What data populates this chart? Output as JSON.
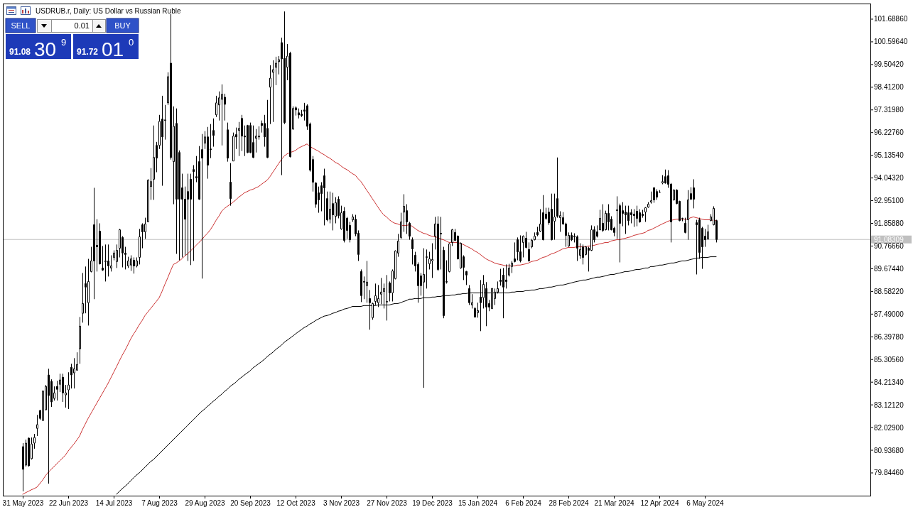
{
  "chart_data": {
    "type": "candlestick",
    "title": "USDRUB.r, Daily: US Dollar vs Russian Ruble",
    "categories": [
      "31 May 2023",
      null,
      null,
      null,
      null,
      null,
      null,
      null,
      null,
      null,
      null,
      null,
      null,
      null,
      null,
      null,
      "22 Jun 2023",
      null,
      null,
      null,
      null,
      null,
      null,
      null,
      null,
      null,
      null,
      null,
      null,
      null,
      null,
      null,
      "14 Jul 2023",
      null,
      null,
      null,
      null,
      null,
      null,
      null,
      null,
      null,
      null,
      null,
      null,
      null,
      null,
      null,
      "7 Aug 2023",
      null,
      null,
      null,
      null,
      null,
      null,
      null,
      null,
      null,
      null,
      null,
      null,
      null,
      null,
      null,
      "29 Aug 2023",
      null,
      null,
      null,
      null,
      null,
      null,
      null,
      null,
      null,
      null,
      null,
      null,
      null,
      null,
      null,
      "20 Sep 2023",
      null,
      null,
      null,
      null,
      null,
      null,
      null,
      null,
      null,
      null,
      null,
      null,
      null,
      null,
      null,
      "12 Oct 2023",
      null,
      null,
      null,
      null,
      null,
      null,
      null,
      null,
      null,
      null,
      null,
      null,
      null,
      null,
      null,
      "3 Nov 2023",
      null,
      null,
      null,
      null,
      null,
      null,
      null,
      null,
      null,
      null,
      null,
      null,
      null,
      null,
      null,
      "27 Nov 2023",
      null,
      null,
      null,
      null,
      null,
      null,
      null,
      null,
      null,
      null,
      null,
      null,
      null,
      null,
      null,
      "19 Dec 2023",
      null,
      null,
      null,
      null,
      null,
      null,
      null,
      null,
      null,
      null,
      null,
      null,
      null,
      null,
      null,
      "15 Jan 2024",
      null,
      null,
      null,
      null,
      null,
      null,
      null,
      null,
      null,
      null,
      null,
      null,
      null,
      null,
      null,
      "6 Feb 2024",
      null,
      null,
      null,
      null,
      null,
      null,
      null,
      null,
      null,
      null,
      null,
      null,
      null,
      null,
      null,
      "28 Feb 2024",
      null,
      null,
      null,
      null,
      null,
      null,
      null,
      null,
      null,
      null,
      null,
      null,
      null,
      null,
      null,
      "21 Mar 2024",
      null,
      null,
      null,
      null,
      null,
      null,
      null,
      null,
      null,
      null,
      null,
      null,
      null,
      null,
      null,
      "12 Apr 2024",
      null,
      null,
      null,
      null,
      null,
      null,
      null,
      null,
      null,
      null,
      null,
      null,
      null,
      null,
      null,
      "6 May 2024",
      null,
      null,
      null,
      null
    ],
    "ohlc": [
      [
        81.11,
        81.28,
        78.96,
        80.02
      ],
      [
        80.22,
        81.45,
        80.15,
        81.28
      ],
      [
        81.52,
        81.55,
        80.15,
        80.19
      ],
      [
        80.53,
        81.55,
        80.49,
        81.24
      ],
      [
        81.28,
        81.72,
        81.01,
        81.55
      ],
      [
        81.99,
        82.64,
        81.62,
        82.17
      ],
      [
        82.85,
        82.88,
        82.4,
        82.47
      ],
      [
        82.37,
        83.84,
        82.34,
        83.77
      ],
      [
        82.88,
        84.08,
        82.88,
        84.01
      ],
      [
        84.56,
        84.86,
        79.33,
        83.57
      ],
      [
        84.25,
        84.35,
        83.02,
        83.26
      ],
      [
        83.43,
        84.01,
        83.33,
        83.7
      ],
      [
        84.01,
        84.28,
        83.33,
        83.87
      ],
      [
        84.11,
        84.62,
        83.74,
        84.32
      ],
      [
        84.45,
        84.62,
        83.26,
        83.7
      ],
      [
        83.6,
        84.08,
        82.99,
        83.7
      ],
      [
        83.84,
        84.69,
        82.92,
        84.08
      ],
      [
        84.93,
        85.1,
        83.91,
        84.56
      ],
      [
        84.66,
        85.37,
        83.91,
        84.86
      ],
      [
        84.79,
        85.65,
        84.79,
        85.07
      ],
      [
        85.82,
        87.35,
        85.1,
        86.91
      ],
      [
        87.53,
        89.47,
        87.08,
        88.0
      ],
      [
        88.96,
        89.78,
        87.53,
        88.79
      ],
      [
        88.04,
        90.15,
        86.94,
        89.06
      ],
      [
        89.54,
        90.73,
        89.5,
        90.05
      ],
      [
        91.79,
        93.57,
        88.21,
        90.05
      ],
      [
        90.8,
        92.06,
        89.54,
        90.73
      ],
      [
        91.48,
        91.86,
        89.88,
        89.91
      ],
      [
        89.71,
        90.77,
        89.57,
        89.61
      ],
      [
        90.05,
        90.84,
        89.06,
        90.02
      ],
      [
        90.05,
        90.84,
        89.3,
        89.81
      ],
      [
        89.71,
        90.32,
        89.54,
        89.81
      ],
      [
        90.22,
        90.56,
        90.08,
        90.43
      ],
      [
        90.02,
        90.84,
        89.71,
        90.56
      ],
      [
        90.66,
        91.59,
        90.22,
        91.55
      ],
      [
        91.18,
        91.24,
        89.74,
        90.43
      ],
      [
        90.43,
        90.73,
        89.64,
        90.36
      ],
      [
        89.81,
        90.25,
        89.71,
        90.05
      ],
      [
        89.85,
        90.32,
        89.57,
        90.15
      ],
      [
        90.08,
        90.22,
        89.44,
        89.81
      ],
      [
        89.81,
        90.22,
        89.74,
        90.05
      ],
      [
        90.22,
        91.59,
        89.88,
        91.21
      ],
      [
        91.79,
        91.86,
        90.66,
        91.45
      ],
      [
        91.45,
        92.13,
        91.11,
        91.83
      ],
      [
        91.93,
        93.98,
        91.93,
        93.94
      ],
      [
        93.63,
        94.52,
        92.99,
        93.87
      ],
      [
        93.98,
        96.57,
        92.99,
        95.03
      ],
      [
        95.61,
        95.78,
        94.32,
        95.0
      ],
      [
        95.61,
        97.08,
        95.44,
        96.77
      ],
      [
        96.88,
        98.0,
        93.67,
        96.02
      ],
      [
        96.81,
        97.56,
        95.89,
        96.84
      ],
      [
        97.66,
        99.13,
        97.56,
        98.92
      ],
      [
        99.57,
        101.93,
        94.93,
        95.03
      ],
      [
        94.83,
        97.49,
        92.78,
        96.53
      ],
      [
        96.67,
        97.39,
        90.39,
        93.02
      ],
      [
        95.27,
        95.37,
        90.08,
        93.02
      ],
      [
        93.57,
        94.25,
        90.22,
        93.02
      ],
      [
        93.02,
        93.63,
        90.32,
        92.06
      ],
      [
        93.39,
        94.25,
        90.05,
        93.02
      ],
      [
        93.98,
        94.25,
        89.85,
        93.02
      ],
      [
        94.45,
        94.66,
        90.05,
        94.35
      ],
      [
        94.11,
        95.1,
        93.84,
        94.04
      ],
      [
        94.83,
        95.58,
        92.99,
        93.02
      ],
      [
        95.41,
        96.16,
        89.2,
        95.0
      ],
      [
        95.72,
        96.3,
        95.44,
        96.02
      ],
      [
        96.02,
        96.5,
        94.01,
        94.66
      ],
      [
        95.44,
        96.64,
        95.0,
        95.41
      ],
      [
        96.33,
        96.91,
        95.55,
        96.09
      ],
      [
        97.08,
        98.0,
        96.98,
        97.66
      ],
      [
        97.56,
        98.21,
        96.81,
        97.9
      ],
      [
        97.83,
        98.55,
        95.61,
        98.07
      ],
      [
        97.93,
        98.1,
        96.81,
        97.59
      ],
      [
        96.36,
        96.71,
        94.83,
        95.0
      ],
      [
        93.84,
        94.76,
        92.71,
        93.05
      ],
      [
        94.86,
        96.23,
        94.86,
        96.06
      ],
      [
        96.13,
        96.47,
        95.44,
        96.02
      ],
      [
        96.33,
        96.74,
        95.1,
        96.43
      ],
      [
        96.91,
        97.08,
        95.34,
        96.06
      ],
      [
        96.06,
        96.57,
        95.1,
        96.02
      ],
      [
        96.57,
        96.6,
        95.24,
        95.27
      ],
      [
        96.57,
        96.71,
        95.24,
        95.27
      ],
      [
        95.75,
        96.57,
        95.0,
        95.03
      ],
      [
        95.95,
        96.4,
        95.27,
        96.06
      ],
      [
        96.02,
        96.53,
        95.89,
        96.06
      ],
      [
        96.67,
        96.81,
        96.23,
        96.57
      ],
      [
        96.67,
        97.08,
        95.55,
        96.02
      ],
      [
        96.43,
        97.8,
        95.0,
        95.03
      ],
      [
        98.41,
        99.47,
        96.64,
        98.85
      ],
      [
        99.13,
        99.71,
        96.74,
        99.26
      ],
      [
        99.37,
        99.88,
        98.51,
        99.57
      ],
      [
        99.64,
        99.91,
        99.03,
        99.74
      ],
      [
        100.56,
        100.8,
        94.18,
        99.78
      ],
      [
        99.81,
        102.06,
        96.64,
        96.71
      ],
      [
        99.37,
        100.49,
        98.75,
        99.91
      ],
      [
        100.05,
        100.12,
        95.03,
        95.07
      ],
      [
        96.4,
        97.49,
        96.36,
        97.39
      ],
      [
        97.42,
        97.49,
        97.05,
        97.32
      ],
      [
        97.18,
        97.39,
        96.91,
        97.08
      ],
      [
        97.12,
        97.32,
        96.98,
        97.05
      ],
      [
        97.32,
        97.66,
        96.81,
        97.25
      ],
      [
        97.52,
        97.59,
        96.36,
        96.53
      ],
      [
        96.64,
        96.71,
        94.35,
        94.42
      ],
      [
        94.93,
        95.1,
        93.39,
        93.84
      ],
      [
        93.8,
        93.84,
        92.61,
        92.78
      ],
      [
        93.33,
        93.63,
        92.37,
        92.99
      ],
      [
        93.67,
        93.84,
        92.44,
        93.29
      ],
      [
        94.15,
        94.49,
        91.76,
        93.57
      ],
      [
        93.05,
        93.39,
        91.96,
        92.03
      ],
      [
        92.06,
        93.39,
        91.86,
        92.54
      ],
      [
        92.81,
        93.33,
        91.52,
        92.27
      ],
      [
        92.2,
        93.12,
        91.86,
        92.85
      ],
      [
        93.02,
        93.16,
        92.1,
        92.23
      ],
      [
        91.59,
        92.71,
        91.55,
        92.37
      ],
      [
        92.44,
        92.64,
        90.94,
        91.04
      ],
      [
        92.1,
        92.17,
        91.11,
        91.52
      ],
      [
        91.76,
        91.93,
        90.94,
        91.07
      ],
      [
        92.03,
        92.3,
        91.93,
        92.17
      ],
      [
        92.06,
        92.27,
        91.24,
        91.35
      ],
      [
        91.38,
        91.52,
        90.05,
        90.36
      ],
      [
        89.54,
        89.64,
        88.07,
        88.38
      ],
      [
        89.06,
        89.3,
        88.21,
        89.03
      ],
      [
        88.86,
        90.05,
        88.04,
        89.03
      ],
      [
        88.24,
        88.65,
        86.74,
        88.04
      ],
      [
        87.32,
        88.04,
        87.22,
        88.0
      ],
      [
        88.1,
        88.96,
        87.93,
        88.38
      ],
      [
        88.04,
        88.89,
        87.83,
        88.24
      ],
      [
        88.45,
        89.23,
        87.97,
        88.55
      ],
      [
        88.58,
        88.96,
        87.76,
        88.72
      ],
      [
        88.07,
        89.37,
        87.18,
        88.1
      ],
      [
        88.99,
        89.06,
        88.1,
        88.51
      ],
      [
        88.51,
        89.64,
        88.1,
        89.57
      ],
      [
        89.2,
        90.56,
        89.16,
        90.53
      ],
      [
        90.43,
        91.35,
        90.25,
        91.01
      ],
      [
        91.18,
        92.37,
        91.11,
        91.93
      ],
      [
        92.4,
        93.26,
        91.45,
        92.68
      ],
      [
        92.47,
        92.78,
        91.35,
        91.93
      ],
      [
        91.86,
        91.93,
        91.07,
        91.24
      ],
      [
        91.07,
        91.18,
        89.88,
        90.63
      ],
      [
        90.32,
        90.49,
        89.54,
        89.81
      ],
      [
        89.88,
        89.98,
        88.04,
        88.86
      ],
      [
        89.33,
        89.47,
        88.38,
        88.86
      ],
      [
        89.03,
        90.66,
        83.94,
        89.4
      ],
      [
        90.22,
        90.6,
        88.72,
        90.25
      ],
      [
        89.91,
        90.49,
        89.64,
        90.15
      ],
      [
        90.05,
        90.9,
        89.23,
        90.12
      ],
      [
        91.24,
        92.17,
        90.6,
        91.83
      ],
      [
        91.83,
        92.2,
        89.57,
        89.64
      ],
      [
        91.38,
        92.17,
        89.64,
        91.35
      ],
      [
        90.56,
        90.73,
        87.29,
        87.42
      ],
      [
        89.06,
        90.08,
        88.96,
        89.03
      ],
      [
        89.54,
        90.9,
        89.5,
        90.87
      ],
      [
        90.94,
        91.59,
        90.77,
        91.55
      ],
      [
        91.42,
        91.59,
        91.01,
        91.04
      ],
      [
        91.24,
        91.28,
        90.12,
        90.15
      ],
      [
        89.71,
        90.94,
        89.67,
        90.9
      ],
      [
        90.25,
        90.32,
        89.13,
        89.74
      ],
      [
        89.54,
        89.57,
        88.89,
        89.37
      ],
      [
        88.72,
        88.89,
        87.93,
        88.04
      ],
      [
        87.93,
        88.45,
        87.76,
        88.04
      ],
      [
        87.76,
        87.83,
        87.32,
        87.35
      ],
      [
        87.56,
        88.04,
        87.32,
        87.66
      ],
      [
        88.31,
        89.13,
        86.67,
        88.04
      ],
      [
        88.28,
        89.37,
        87.76,
        88.92
      ],
      [
        88.72,
        89.03,
        86.91,
        87.83
      ],
      [
        88.0,
        88.17,
        87.63,
        87.83
      ],
      [
        87.76,
        88.75,
        87.73,
        88.72
      ],
      [
        88.24,
        88.72,
        87.93,
        88.55
      ],
      [
        88.55,
        89.06,
        88.48,
        88.72
      ],
      [
        89.13,
        89.67,
        88.86,
        89.06
      ],
      [
        89.37,
        89.71,
        87.29,
        88.79
      ],
      [
        89.13,
        89.88,
        88.72,
        89.06
      ],
      [
        89.37,
        89.91,
        89.3,
        89.71
      ],
      [
        89.78,
        90.05,
        89.47,
        89.95
      ],
      [
        90.15,
        90.94,
        89.98,
        90.02
      ],
      [
        91.07,
        91.18,
        90.08,
        90.49
      ],
      [
        90.49,
        91.28,
        89.98,
        90.05
      ],
      [
        90.94,
        91.28,
        90.22,
        91.24
      ],
      [
        91.14,
        91.45,
        90.66,
        90.7
      ],
      [
        90.6,
        90.94,
        90.02,
        90.05
      ],
      [
        90.73,
        91.11,
        90.66,
        91.04
      ],
      [
        91.07,
        91.42,
        91.04,
        91.24
      ],
      [
        91.42,
        91.69,
        91.24,
        91.31
      ],
      [
        91.48,
        92.54,
        91.45,
        91.83
      ],
      [
        92.37,
        93.22,
        91.04,
        91.07
      ],
      [
        92.3,
        92.61,
        92.03,
        92.1
      ],
      [
        92.4,
        92.61,
        91.79,
        91.89
      ],
      [
        92.54,
        93.29,
        91.04,
        91.07
      ],
      [
        91.96,
        93.29,
        91.07,
        92.17
      ],
      [
        93.05,
        95.03,
        92.13,
        92.2
      ],
      [
        92.13,
        92.44,
        91.45,
        92.23
      ],
      [
        92.13,
        92.4,
        91.79,
        91.83
      ],
      [
        91.83,
        91.89,
        90.73,
        91.28
      ],
      [
        90.77,
        91.42,
        90.73,
        91.28
      ],
      [
        91.28,
        91.42,
        91.01,
        91.07
      ],
      [
        91.24,
        91.38,
        90.94,
        91.21
      ],
      [
        91.21,
        91.28,
        90.05,
        90.66
      ],
      [
        90.32,
        90.9,
        90.15,
        90.6
      ],
      [
        90.73,
        90.84,
        89.88,
        90.22
      ],
      [
        90.36,
        90.77,
        90.32,
        90.73
      ],
      [
        90.66,
        90.73,
        89.54,
        90.56
      ],
      [
        90.56,
        91.76,
        90.53,
        91.55
      ],
      [
        91.55,
        91.72,
        90.94,
        91.07
      ],
      [
        91.45,
        91.76,
        91.18,
        91.24
      ],
      [
        91.55,
        92.51,
        91.52,
        92.1
      ],
      [
        91.86,
        92.78,
        91.45,
        91.52
      ],
      [
        91.55,
        92.47,
        91.52,
        92.34
      ],
      [
        92.34,
        92.78,
        91.52,
        91.93
      ],
      [
        92.06,
        92.2,
        91.52,
        91.55
      ],
      [
        91.62,
        91.69,
        91.24,
        91.42
      ],
      [
        92.47,
        93.16,
        91.11,
        92.51
      ],
      [
        92.71,
        92.81,
        89.98,
        91.86
      ],
      [
        92.47,
        92.88,
        91.72,
        92.34
      ],
      [
        92.4,
        92.71,
        91.35,
        92.27
      ],
      [
        92.37,
        92.71,
        91.76,
        91.99
      ],
      [
        92.37,
        92.54,
        91.86,
        92.27
      ],
      [
        92.3,
        92.54,
        91.69,
        92.23
      ],
      [
        92.44,
        92.71,
        91.72,
        92.1
      ],
      [
        92.37,
        92.54,
        91.89,
        91.93
      ],
      [
        92.3,
        92.51,
        92.13,
        92.23
      ],
      [
        92.4,
        92.64,
        91.93,
        92.61
      ],
      [
        92.64,
        92.88,
        92.61,
        92.78
      ],
      [
        92.88,
        93.39,
        92.81,
        92.95
      ],
      [
        93.57,
        93.6,
        92.85,
        92.99
      ],
      [
        93.39,
        93.5,
        92.99,
        93.12
      ],
      [
        93.36,
        93.46,
        93.33,
        93.36
      ],
      [
        93.8,
        94.18,
        93.74,
        93.87
      ],
      [
        94.11,
        94.45,
        93.77,
        93.8
      ],
      [
        94.15,
        94.42,
        93.57,
        93.74
      ],
      [
        93.74,
        93.8,
        90.94,
        91.93
      ],
      [
        92.99,
        93.5,
        92.95,
        93.46
      ],
      [
        93.46,
        93.5,
        92.78,
        92.81
      ],
      [
        92.92,
        92.95,
        91.96,
        91.99
      ],
      [
        92.1,
        92.13,
        91.96,
        92.1
      ],
      [
        91.86,
        92.13,
        91.38,
        91.42
      ],
      [
        92.03,
        93.46,
        91.07,
        92.99
      ],
      [
        93.29,
        93.6,
        92.99,
        93.02
      ],
      [
        93.57,
        93.98,
        92.58,
        93.02
      ],
      [
        91.89,
        92.03,
        89.4,
        91.79
      ],
      [
        92.03,
        92.13,
        90.15,
        90.46
      ],
      [
        91.62,
        91.69,
        89.67,
        90.73
      ],
      [
        91.24,
        91.59,
        90.73,
        91.07
      ],
      [
        91.11,
        91.79,
        91.07,
        91.45
      ],
      [
        91.99,
        92.3,
        91.96,
        92.17
      ],
      [
        91.79,
        92.68,
        91.76,
        92.58
      ],
      [
        91.99,
        92.03,
        90.94,
        91.08
      ]
    ],
    "series": [
      {
        "type": "line",
        "color": "#cc3333",
        "values": [
          78.82,
          78.89,
          78.96,
          79.03,
          79.09,
          79.16,
          79.33,
          79.5,
          79.71,
          79.88,
          80.02,
          80.15,
          80.29,
          80.43,
          80.56,
          80.7,
          80.9,
          81.07,
          81.24,
          81.42,
          81.62,
          81.93,
          82.2,
          82.47,
          82.71,
          82.95,
          83.19,
          83.43,
          83.67,
          83.91,
          84.15,
          84.42,
          84.69,
          84.96,
          85.24,
          85.51,
          85.75,
          86.02,
          86.3,
          86.53,
          86.74,
          86.98,
          87.18,
          87.42,
          87.59,
          87.76,
          87.93,
          88.1,
          88.28,
          88.58,
          88.92,
          89.23,
          89.57,
          89.88,
          89.95,
          90.05,
          90.15,
          90.29,
          90.39,
          90.53,
          90.66,
          90.8,
          90.94,
          91.07,
          91.24,
          91.38,
          91.55,
          91.76,
          92.0,
          92.2,
          92.44,
          92.58,
          92.68,
          92.78,
          92.88,
          92.99,
          93.12,
          93.22,
          93.33,
          93.39,
          93.46,
          93.5,
          93.57,
          93.63,
          93.74,
          93.84,
          93.94,
          94.11,
          94.32,
          94.52,
          94.73,
          94.93,
          95.1,
          95.2,
          95.27,
          95.31,
          95.37,
          95.48,
          95.55,
          95.61,
          95.68,
          95.58,
          95.48,
          95.41,
          95.34,
          95.24,
          95.17,
          95.07,
          95.0,
          94.9,
          94.79,
          94.73,
          94.62,
          94.52,
          94.45,
          94.35,
          94.25,
          94.18,
          94.01,
          93.87,
          93.67,
          93.46,
          93.26,
          93.05,
          92.85,
          92.64,
          92.44,
          92.27,
          92.17,
          92.03,
          91.93,
          91.86,
          91.83,
          91.76,
          91.76,
          91.76,
          91.79,
          91.72,
          91.62,
          91.52,
          91.45,
          91.38,
          91.35,
          91.28,
          91.24,
          91.21,
          91.18,
          91.11,
          91.07,
          91.01,
          90.94,
          90.94,
          90.94,
          90.94,
          90.9,
          90.84,
          90.77,
          90.7,
          90.63,
          90.53,
          90.46,
          90.36,
          90.25,
          90.15,
          90.08,
          90.02,
          89.95,
          89.91,
          89.88,
          89.85,
          89.81,
          89.81,
          89.81,
          89.81,
          89.85,
          89.85,
          89.88,
          89.91,
          89.95,
          90.02,
          90.05,
          90.08,
          90.15,
          90.22,
          90.25,
          90.32,
          90.39,
          90.43,
          90.49,
          90.56,
          90.63,
          90.66,
          90.7,
          90.7,
          90.7,
          90.73,
          90.73,
          90.73,
          90.73,
          90.77,
          90.77,
          90.8,
          90.84,
          90.87,
          90.9,
          90.94,
          90.94,
          91.01,
          91.04,
          91.07,
          91.07,
          91.11,
          91.14,
          91.18,
          91.21,
          91.28,
          91.31,
          91.35,
          91.38,
          91.42,
          91.52,
          91.55,
          91.62,
          91.69,
          91.76,
          91.83,
          91.89,
          91.96,
          92.0,
          92.03,
          92.06,
          92.06,
          92.06,
          92.06,
          92.06,
          92.13,
          92.17,
          92.13,
          92.1,
          92.06,
          92.03,
          92.03,
          92.03,
          92.0,
          92.0
        ]
      },
      {
        "type": "line",
        "color": "#000000",
        "values": [
          null,
          null,
          null,
          null,
          null,
          null,
          null,
          null,
          null,
          null,
          null,
          null,
          null,
          null,
          null,
          null,
          null,
          null,
          null,
          null,
          null,
          null,
          null,
          null,
          null,
          null,
          null,
          null,
          null,
          null,
          null,
          null,
          null,
          78.82,
          78.96,
          79.09,
          79.2,
          79.33,
          79.47,
          79.61,
          79.74,
          79.85,
          79.98,
          80.12,
          80.25,
          80.39,
          80.49,
          80.63,
          80.77,
          80.9,
          81.04,
          81.18,
          81.31,
          81.45,
          81.59,
          81.72,
          81.86,
          81.99,
          82.13,
          82.27,
          82.4,
          82.54,
          82.68,
          82.81,
          82.92,
          83.05,
          83.16,
          83.29,
          83.39,
          83.53,
          83.63,
          83.77,
          83.87,
          84.01,
          84.11,
          84.21,
          84.35,
          84.45,
          84.56,
          84.66,
          84.76,
          84.9,
          85.0,
          85.1,
          85.2,
          85.31,
          85.44,
          85.55,
          85.65,
          85.78,
          85.89,
          85.99,
          86.13,
          86.23,
          86.33,
          86.43,
          86.54,
          86.64,
          86.74,
          86.84,
          86.91,
          87.01,
          87.08,
          87.18,
          87.25,
          87.32,
          87.39,
          87.42,
          87.46,
          87.53,
          87.56,
          87.63,
          87.66,
          87.73,
          87.76,
          87.8,
          87.86,
          87.86,
          87.86,
          87.86,
          87.9,
          87.9,
          87.9,
          87.9,
          87.9,
          87.93,
          87.93,
          87.93,
          87.93,
          87.93,
          87.97,
          88.0,
          88.0,
          88.04,
          88.1,
          88.14,
          88.21,
          88.21,
          88.24,
          88.24,
          88.24,
          88.28,
          88.28,
          88.28,
          88.31,
          88.31,
          88.34,
          88.34,
          88.38,
          88.38,
          88.38,
          88.41,
          88.41,
          88.45,
          88.45,
          88.48,
          88.48,
          88.51,
          88.51,
          88.51,
          88.51,
          88.51,
          88.51,
          88.51,
          88.51,
          88.51,
          88.51,
          88.51,
          88.51,
          88.51,
          88.51,
          88.51,
          88.55,
          88.55,
          88.58,
          88.58,
          88.58,
          88.62,
          88.62,
          88.65,
          88.65,
          88.68,
          88.72,
          88.72,
          88.75,
          88.79,
          88.79,
          88.82,
          88.86,
          88.89,
          88.89,
          88.92,
          88.96,
          88.99,
          89.03,
          89.06,
          89.09,
          89.13,
          89.13,
          89.16,
          89.2,
          89.23,
          89.27,
          89.27,
          89.3,
          89.33,
          89.37,
          89.4,
          89.4,
          89.44,
          89.47,
          89.5,
          89.54,
          89.54,
          89.57,
          89.61,
          89.64,
          89.64,
          89.67,
          89.71,
          89.71,
          89.78,
          89.78,
          89.81,
          89.85,
          89.85,
          89.88,
          89.91,
          89.95,
          89.95,
          89.98,
          90.02,
          90.05,
          90.05,
          90.08,
          90.12,
          90.15,
          90.19,
          90.19,
          90.22,
          90.22,
          90.22,
          90.25,
          90.25,
          90.25
        ]
      }
    ],
    "ylim": [
      78.75,
      102.44
    ],
    "yticks": [
      {
        "value": 101.6886,
        "label": "101.68860"
      },
      {
        "value": 100.5964,
        "label": "100.59640"
      },
      {
        "value": 99.5042,
        "label": "99.50420"
      },
      {
        "value": 98.412,
        "label": "98.41200"
      },
      {
        "value": 97.3198,
        "label": "97.31980"
      },
      {
        "value": 96.2276,
        "label": "96.22760"
      },
      {
        "value": 95.1354,
        "label": "95.13540"
      },
      {
        "value": 94.0432,
        "label": "94.04320"
      },
      {
        "value": 92.951,
        "label": "92.95100"
      },
      {
        "value": 91.8588,
        "label": "91.85880"
      },
      {
        "value": 90.7666,
        "label": "90.76660"
      },
      {
        "value": 89.6744,
        "label": "89.67440"
      },
      {
        "value": 88.5822,
        "label": "88.58220"
      },
      {
        "value": 87.49,
        "label": "87.49000"
      },
      {
        "value": 86.3978,
        "label": "86.39780"
      },
      {
        "value": 85.3056,
        "label": "85.30560"
      },
      {
        "value": 84.2134,
        "label": "84.21340"
      },
      {
        "value": 83.1212,
        "label": "83.12120"
      },
      {
        "value": 82.029,
        "label": "82.02900"
      },
      {
        "value": 80.9368,
        "label": "80.93680"
      },
      {
        "value": 79.8446,
        "label": "79.84460"
      }
    ],
    "ref_lines": [
      {
        "axis": "y",
        "value": 91.08309,
        "label": "91.08309",
        "color": "#c0c0c0"
      }
    ],
    "annotations": [
      "SELL",
      "BUY",
      "0.01",
      "91.08",
      "30",
      "9",
      "91.72",
      "01",
      "0"
    ]
  }
}
